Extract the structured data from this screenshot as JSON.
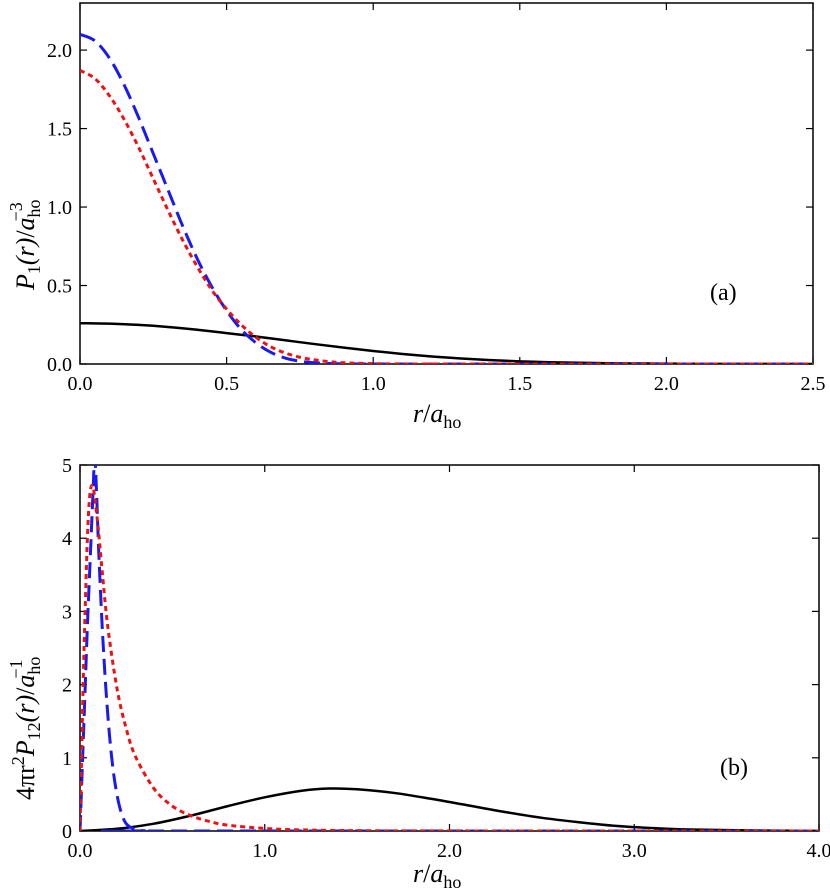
{
  "chart_data": [
    {
      "type": "line",
      "panel_label": "(a)",
      "xlabel": {
        "main": "r",
        "slash": "/",
        "var": "a",
        "sub": "ho"
      },
      "ylabel": {
        "main": "P",
        "sub1": "1",
        "arg": "(r)",
        "slash": "/",
        "var": "a",
        "sub": "ho",
        "sup": "−3"
      },
      "xlim": [
        0,
        2.5
      ],
      "ylim": [
        0,
        2.3
      ],
      "xticks": [
        0,
        0.5,
        1.0,
        1.5,
        2.0,
        2.5
      ],
      "xtick_labels": [
        "0.0",
        "0.5",
        "1.0",
        "1.5",
        "2.0",
        "2.5"
      ],
      "yticks": [
        0,
        0.5,
        1.0,
        1.5,
        2.0
      ],
      "ytick_labels": [
        "0.0",
        "0.5",
        "1.0",
        "1.5",
        "2.0"
      ],
      "grid": false,
      "series": [
        {
          "style": "solid",
          "color": "#000000",
          "x": [
            0,
            0.1,
            0.2,
            0.3,
            0.4,
            0.5,
            0.6,
            0.7,
            0.8,
            0.9,
            1.0,
            1.1,
            1.2,
            1.3,
            1.4,
            1.5,
            1.6,
            1.8,
            2.0,
            2.2,
            2.5
          ],
          "y": [
            0.26,
            0.257,
            0.249,
            0.236,
            0.218,
            0.197,
            0.175,
            0.151,
            0.127,
            0.104,
            0.083,
            0.064,
            0.048,
            0.035,
            0.025,
            0.017,
            0.011,
            0.005,
            0.002,
            0.001,
            0.0
          ]
        },
        {
          "style": "dashed",
          "color": "#1a1aee",
          "x": [
            0,
            0.05,
            0.1,
            0.15,
            0.2,
            0.25,
            0.3,
            0.35,
            0.4,
            0.45,
            0.5,
            0.55,
            0.6,
            0.65,
            0.7,
            0.75,
            0.8,
            0.85,
            0.9,
            1.0,
            1.1,
            1.2,
            2.5
          ],
          "y": [
            2.1,
            2.06,
            1.95,
            1.78,
            1.57,
            1.34,
            1.11,
            0.88,
            0.67,
            0.49,
            0.34,
            0.22,
            0.135,
            0.075,
            0.038,
            0.018,
            0.008,
            0.003,
            0.001,
            0.0,
            0.0,
            0.0,
            0.0
          ]
        },
        {
          "style": "dotted",
          "color": "#ee1111",
          "x": [
            0,
            0.05,
            0.1,
            0.15,
            0.2,
            0.25,
            0.3,
            0.35,
            0.4,
            0.45,
            0.5,
            0.55,
            0.6,
            0.65,
            0.7,
            0.75,
            0.8,
            0.85,
            0.9,
            1.0,
            1.1,
            1.2,
            1.3,
            2.5
          ],
          "y": [
            1.87,
            1.82,
            1.71,
            1.56,
            1.38,
            1.18,
            0.98,
            0.79,
            0.62,
            0.47,
            0.35,
            0.25,
            0.17,
            0.11,
            0.07,
            0.043,
            0.026,
            0.015,
            0.008,
            0.002,
            0.0005,
            0.0,
            0.0,
            0.0
          ]
        }
      ]
    },
    {
      "type": "line",
      "panel_label": "(b)",
      "xlabel": {
        "main": "r",
        "slash": "/",
        "var": "a",
        "sub": "ho"
      },
      "ylabel": {
        "prefix": "4πr",
        "sup2": "2",
        "main": "P",
        "sub1": "12",
        "arg": "(r)",
        "slash": "/",
        "var": "a",
        "sub": "ho",
        "sup": "−1"
      },
      "xlim": [
        0,
        4.0
      ],
      "ylim": [
        0,
        5
      ],
      "xticks": [
        0,
        1.0,
        2.0,
        3.0,
        4.0
      ],
      "xtick_labels": [
        "0.0",
        "1.0",
        "2.0",
        "3.0",
        "4.0"
      ],
      "yticks": [
        0,
        1,
        2,
        3,
        4,
        5
      ],
      "ytick_labels": [
        "0",
        "1",
        "2",
        "3",
        "4",
        "5"
      ],
      "grid": false,
      "series": [
        {
          "style": "solid",
          "color": "#000000",
          "x": [
            0,
            0.2,
            0.4,
            0.6,
            0.8,
            1.0,
            1.2,
            1.35,
            1.5,
            1.7,
            1.9,
            2.1,
            2.3,
            2.5,
            2.7,
            2.9,
            3.1,
            3.3,
            3.6,
            4.0
          ],
          "y": [
            0.0,
            0.03,
            0.1,
            0.21,
            0.34,
            0.46,
            0.55,
            0.58,
            0.57,
            0.52,
            0.44,
            0.35,
            0.26,
            0.18,
            0.12,
            0.07,
            0.04,
            0.02,
            0.008,
            0.002
          ]
        },
        {
          "style": "dashed",
          "color": "#1a1aee",
          "x": [
            0,
            0.01,
            0.02,
            0.03,
            0.04,
            0.05,
            0.06,
            0.07,
            0.08,
            0.09,
            0.1,
            0.12,
            0.14,
            0.16,
            0.18,
            0.2,
            0.22,
            0.25,
            0.3,
            0.35,
            0.4,
            4.0
          ],
          "y": [
            0.0,
            0.7,
            1.4,
            2.1,
            2.8,
            3.4,
            4.0,
            4.6,
            5.1,
            4.6,
            3.9,
            2.8,
            1.95,
            1.3,
            0.82,
            0.5,
            0.28,
            0.1,
            0.02,
            0.003,
            0.0,
            0.0
          ]
        },
        {
          "style": "dotted",
          "color": "#ee1111",
          "x": [
            0,
            0.01,
            0.02,
            0.03,
            0.04,
            0.05,
            0.06,
            0.07,
            0.08,
            0.1,
            0.12,
            0.15,
            0.2,
            0.25,
            0.3,
            0.4,
            0.5,
            0.6,
            0.7,
            0.8,
            1.0,
            1.2,
            1.5,
            2.0,
            4.0
          ],
          "y": [
            0.0,
            1.2,
            2.3,
            3.2,
            4.0,
            4.5,
            4.7,
            4.7,
            4.55,
            4.1,
            3.55,
            2.8,
            1.95,
            1.4,
            1.02,
            0.58,
            0.34,
            0.21,
            0.13,
            0.08,
            0.035,
            0.015,
            0.005,
            0.001,
            0.0
          ]
        }
      ]
    }
  ]
}
